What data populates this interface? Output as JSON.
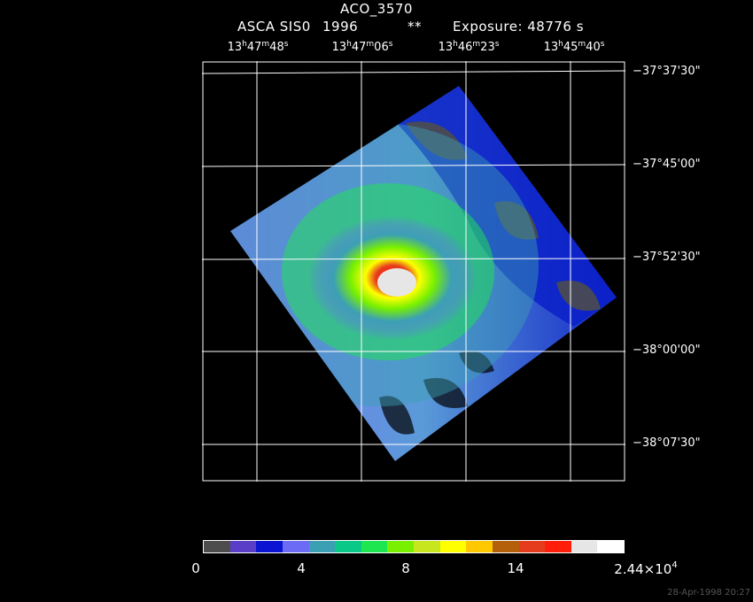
{
  "title": "ACO_3570",
  "subtitle": {
    "instrument": "ASCA SIS0",
    "year": "1996",
    "flag": "**",
    "exposure": "Exposure: 48776 s"
  },
  "ra_ticks": [
    {
      "h": "13",
      "m": "47",
      "s": "48"
    },
    {
      "h": "13",
      "m": "47",
      "s": "06"
    },
    {
      "h": "13",
      "m": "46",
      "s": "23"
    },
    {
      "h": "13",
      "m": "45",
      "s": "40"
    }
  ],
  "ra_units": {
    "h": "h",
    "m": "m",
    "s": "s"
  },
  "dec_ticks": [
    "−37°37'30\"",
    "−37°45'00\"",
    "−37°52'30\"",
    "−38°00'00\"",
    "−38°07'30\""
  ],
  "colorbar": {
    "colors": [
      "#4d4d4d",
      "#5a3ec8",
      "#0a14d2",
      "#6b6bf5",
      "#3ca0b4",
      "#0ac887",
      "#1ee650",
      "#78f000",
      "#c8e61e",
      "#ffff00",
      "#ffc800",
      "#b45f0a",
      "#e63c1e",
      "#ff1e0a",
      "#e6e6e6",
      "#ffffff"
    ],
    "labels": [
      "0",
      "4",
      "8",
      "14"
    ],
    "max_label_base": "2.44×10",
    "max_label_exp": "4"
  },
  "timestamp": "28-Apr-1998 20:27"
}
